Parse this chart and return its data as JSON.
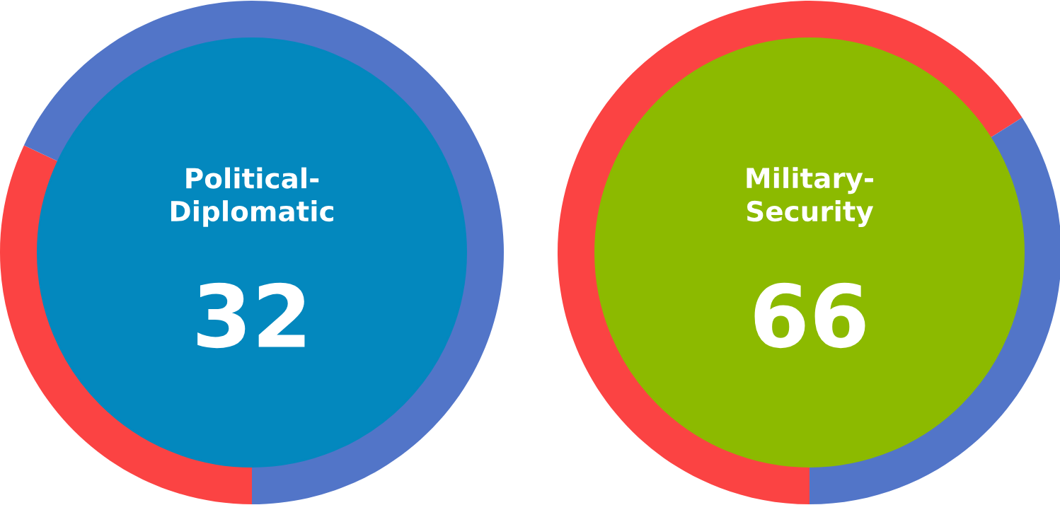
{
  "chart_data": [
    {
      "type": "donut",
      "title": "Political-\nDiplomatic",
      "categories": [
        null,
        null
      ],
      "values": [
        32,
        68
      ],
      "colors": [
        "#fb4343",
        "#5275c8"
      ],
      "value_labels": [
        "32",
        null
      ]
    },
    {
      "type": "donut",
      "title": "Military-\nSecurity",
      "categories": [
        null,
        null
      ],
      "values": [
        66,
        34
      ],
      "colors": [
        "#fb4343",
        "#5275c8"
      ],
      "value_labels": [
        "66",
        null
      ]
    }
  ]
}
